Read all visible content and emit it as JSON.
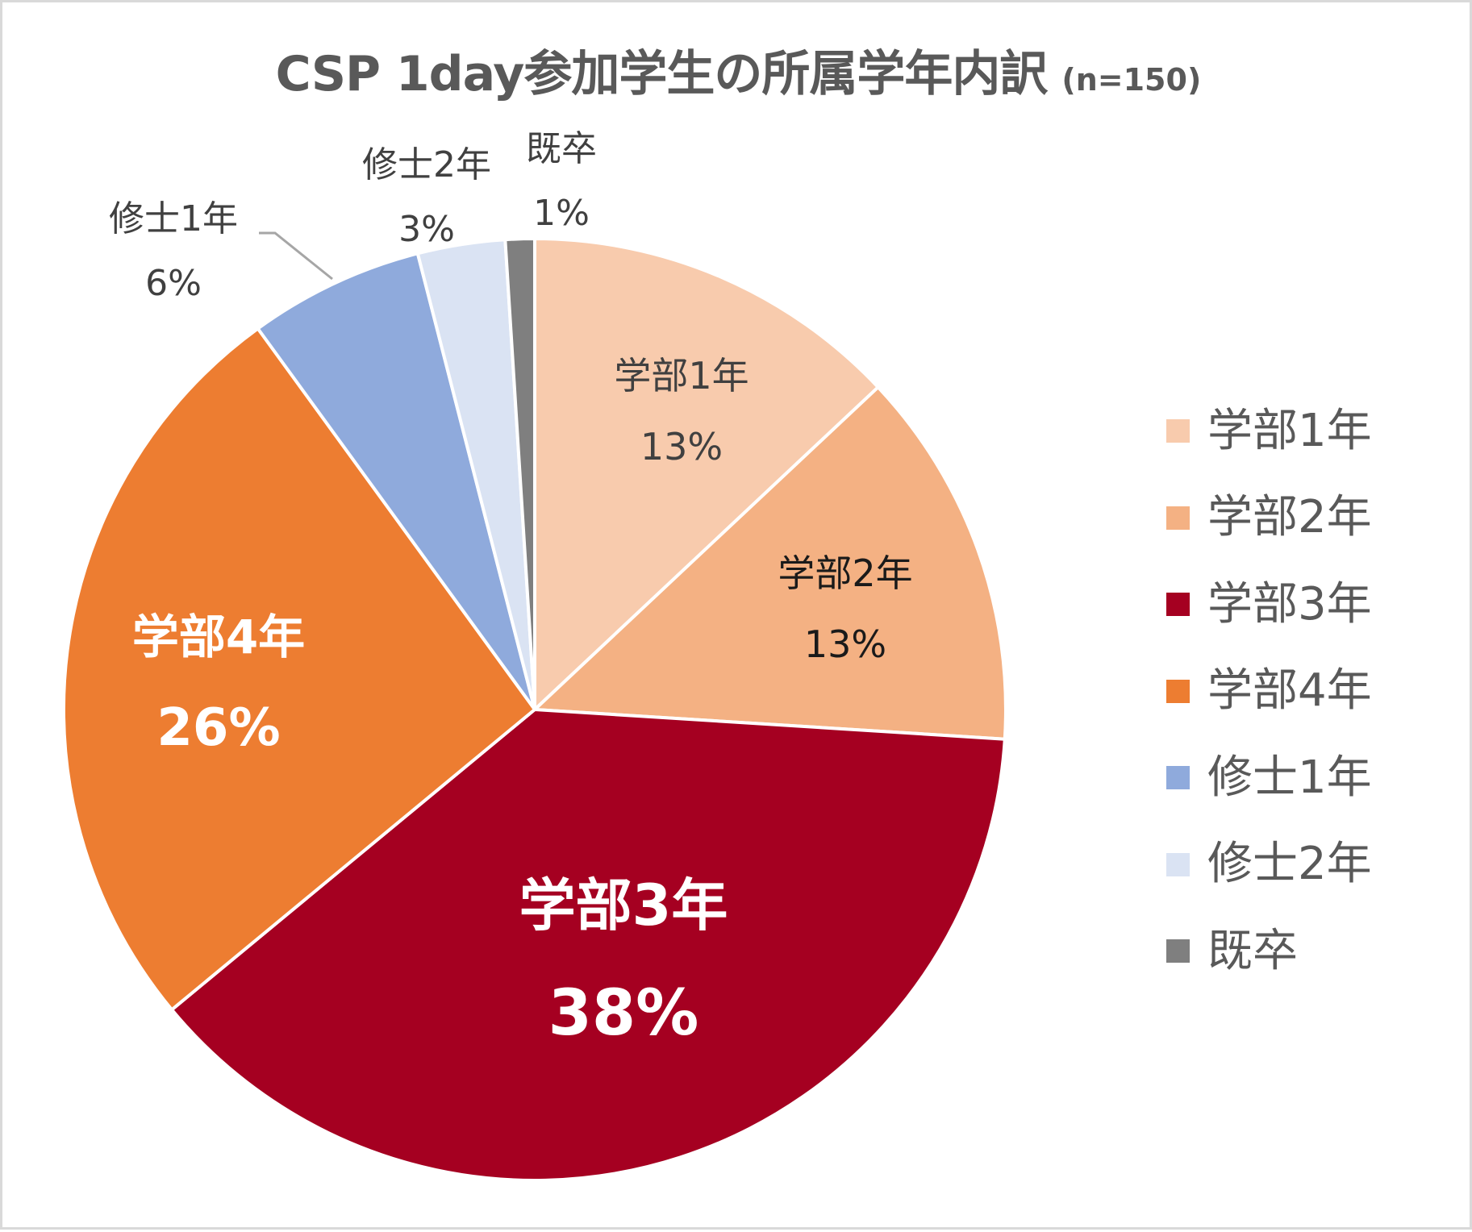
{
  "chart": {
    "title": "CSP 1day参加学生の所属学年内訳",
    "subtitle": "(n=150)"
  },
  "chart_data": {
    "type": "pie",
    "title": "CSP 1day参加学生の所属学年内訳 (n=150)",
    "n": 150,
    "categories": [
      "学部1年",
      "学部2年",
      "学部3年",
      "学部4年",
      "修士1年",
      "修士2年",
      "既卒"
    ],
    "values": [
      13,
      13,
      38,
      26,
      6,
      3,
      1
    ],
    "value_labels": [
      "13%",
      "13%",
      "38%",
      "26%",
      "6%",
      "3%",
      "1%"
    ],
    "unit": "%",
    "colors": [
      "#f8cbad",
      "#f4b183",
      "#a50021",
      "#ed7d31",
      "#8faadc",
      "#dae3f3",
      "#7f7f7f"
    ],
    "start_angle_deg": 0,
    "direction": "clockwise",
    "legend_position": "right"
  },
  "slices": [
    {
      "label": "学部1年",
      "pct": "13%"
    },
    {
      "label": "学部2年",
      "pct": "13%"
    },
    {
      "label": "学部3年",
      "pct": "38%"
    },
    {
      "label": "学部4年",
      "pct": "26%"
    },
    {
      "label": "修士1年",
      "pct": "6%"
    },
    {
      "label": "修士2年",
      "pct": "3%"
    },
    {
      "label": "既卒",
      "pct": "1%"
    }
  ],
  "legend": {
    "items": [
      {
        "label": "学部1年",
        "color": "#f8cbad"
      },
      {
        "label": "学部2年",
        "color": "#f4b183"
      },
      {
        "label": "学部3年",
        "color": "#a50021"
      },
      {
        "label": "学部4年",
        "color": "#ed7d31"
      },
      {
        "label": "修士1年",
        "color": "#8faadc"
      },
      {
        "label": "修士2年",
        "color": "#dae3f3"
      },
      {
        "label": "既卒",
        "color": "#7f7f7f"
      }
    ]
  },
  "style": {
    "title_color": "#595959",
    "border_color": "#d9d9d9",
    "leader_line_color": "#a6a6a6",
    "slice_separator_color": "#ffffff"
  }
}
